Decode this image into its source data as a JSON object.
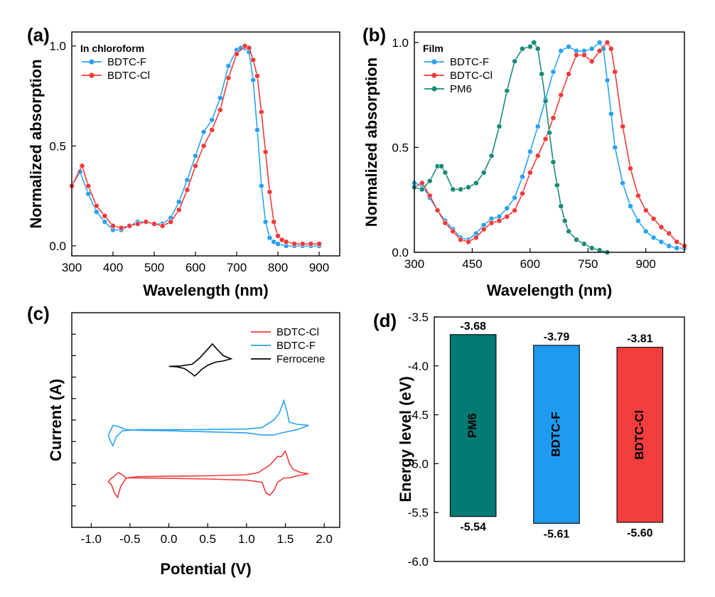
{
  "colors": {
    "blue": "#2aa2ee",
    "red": "#ee3b3b",
    "teal": "#1a8a7a",
    "black": "#000000",
    "pm6_bar": "#047a74",
    "f_bar": "#1e9bf0",
    "cl_bar": "#f43e3e"
  },
  "chart_data": [
    {
      "id": "a",
      "panel_label": "(a)",
      "type": "line",
      "xlabel": "Wavelength (nm)",
      "ylabel": "Normalized absorption",
      "xlim": [
        300,
        950
      ],
      "ylim": [
        -0.05,
        1.07
      ],
      "xticks": [
        300,
        400,
        500,
        600,
        700,
        800,
        900
      ],
      "xtick_labels": [
        "300",
        "400",
        "500",
        "600",
        "700",
        "800",
        "900"
      ],
      "yticks": [
        0.0,
        0.5,
        1.0
      ],
      "ytick_labels": [
        "0.0",
        "0.5",
        "1.0"
      ],
      "legend_title": "In chloroform",
      "legend_position": "top-left",
      "series": [
        {
          "name": "BDTC-F",
          "color": "#2aa2ee",
          "x": [
            300,
            320,
            340,
            360,
            380,
            400,
            420,
            440,
            460,
            480,
            500,
            520,
            540,
            560,
            580,
            600,
            620,
            640,
            660,
            680,
            700,
            710,
            720,
            730,
            740,
            750,
            760,
            770,
            780,
            790,
            800,
            820,
            840,
            860,
            880,
            900
          ],
          "y": [
            0.3,
            0.37,
            0.26,
            0.17,
            0.12,
            0.08,
            0.08,
            0.1,
            0.12,
            0.12,
            0.11,
            0.11,
            0.14,
            0.22,
            0.33,
            0.45,
            0.57,
            0.63,
            0.74,
            0.9,
            0.98,
            0.99,
            0.99,
            0.97,
            0.83,
            0.58,
            0.3,
            0.12,
            0.04,
            0.02,
            0.01,
            0.0,
            0.0,
            0.0,
            0.0,
            0.0
          ]
        },
        {
          "name": "BDTC-Cl",
          "color": "#ee3b3b",
          "x": [
            300,
            325,
            340,
            360,
            380,
            400,
            420,
            440,
            460,
            480,
            500,
            520,
            540,
            560,
            580,
            600,
            620,
            640,
            660,
            680,
            700,
            720,
            730,
            740,
            750,
            760,
            770,
            780,
            790,
            800,
            810,
            820,
            840,
            860,
            880,
            900
          ],
          "y": [
            0.3,
            0.4,
            0.3,
            0.2,
            0.15,
            0.1,
            0.09,
            0.1,
            0.11,
            0.12,
            0.11,
            0.1,
            0.12,
            0.18,
            0.28,
            0.4,
            0.5,
            0.58,
            0.68,
            0.84,
            0.96,
            1.0,
            0.99,
            0.93,
            0.85,
            0.67,
            0.47,
            0.27,
            0.12,
            0.05,
            0.03,
            0.02,
            0.01,
            0.01,
            0.01,
            0.01
          ]
        }
      ]
    },
    {
      "id": "b",
      "panel_label": "(b)",
      "type": "line",
      "xlabel": "Wavelength (nm)",
      "ylabel": "Normalized absorption",
      "xlim": [
        300,
        1000
      ],
      "ylim": [
        0.0,
        1.05
      ],
      "xticks": [
        300,
        450,
        600,
        750,
        900
      ],
      "xtick_labels": [
        "300",
        "450",
        "600",
        "750",
        "900"
      ],
      "yticks": [
        0.0,
        0.5,
        1.0
      ],
      "ytick_labels": [
        "0.0",
        "0.5",
        "1.0"
      ],
      "legend_title": "Film",
      "legend_position": "top-left",
      "series": [
        {
          "name": "BDTC-F",
          "color": "#2aa2ee",
          "x": [
            300,
            320,
            340,
            360,
            380,
            400,
            420,
            440,
            460,
            480,
            500,
            520,
            540,
            560,
            580,
            600,
            620,
            640,
            660,
            680,
            700,
            720,
            740,
            760,
            780,
            790,
            800,
            810,
            820,
            840,
            860,
            880,
            900,
            920,
            940,
            960,
            980,
            1000
          ],
          "y": [
            0.33,
            0.32,
            0.26,
            0.2,
            0.15,
            0.11,
            0.07,
            0.06,
            0.09,
            0.13,
            0.16,
            0.17,
            0.21,
            0.26,
            0.36,
            0.48,
            0.6,
            0.73,
            0.86,
            0.96,
            0.98,
            0.96,
            0.96,
            0.97,
            1.0,
            0.97,
            0.82,
            0.66,
            0.5,
            0.33,
            0.22,
            0.15,
            0.1,
            0.07,
            0.05,
            0.03,
            0.02,
            0.02
          ]
        },
        {
          "name": "BDTC-Cl",
          "color": "#ee3b3b",
          "x": [
            300,
            320,
            340,
            360,
            380,
            400,
            420,
            440,
            460,
            480,
            500,
            520,
            540,
            560,
            580,
            600,
            620,
            640,
            660,
            680,
            700,
            720,
            740,
            760,
            780,
            800,
            810,
            820,
            840,
            860,
            880,
            900,
            920,
            940,
            960,
            980,
            1000
          ],
          "y": [
            0.31,
            0.33,
            0.27,
            0.2,
            0.14,
            0.1,
            0.06,
            0.05,
            0.07,
            0.11,
            0.14,
            0.15,
            0.17,
            0.2,
            0.28,
            0.38,
            0.46,
            0.54,
            0.64,
            0.75,
            0.85,
            0.94,
            0.94,
            0.91,
            0.96,
            1.0,
            0.97,
            0.86,
            0.6,
            0.4,
            0.27,
            0.2,
            0.16,
            0.12,
            0.09,
            0.05,
            0.03
          ]
        },
        {
          "name": "PM6",
          "color": "#1a8a7a",
          "x": [
            300,
            320,
            340,
            360,
            370,
            380,
            400,
            420,
            440,
            460,
            480,
            500,
            520,
            540,
            560,
            580,
            600,
            610,
            620,
            630,
            640,
            650,
            660,
            670,
            680,
            690,
            700,
            720,
            740,
            760,
            780,
            800
          ],
          "y": [
            0.31,
            0.3,
            0.34,
            0.41,
            0.41,
            0.38,
            0.3,
            0.3,
            0.31,
            0.33,
            0.38,
            0.46,
            0.6,
            0.77,
            0.91,
            0.97,
            0.98,
            1.0,
            0.97,
            0.85,
            0.72,
            0.57,
            0.43,
            0.32,
            0.22,
            0.15,
            0.1,
            0.06,
            0.04,
            0.02,
            0.01,
            0.0
          ]
        }
      ]
    },
    {
      "id": "c",
      "panel_label": "(c)",
      "type": "line",
      "xlabel": "Potential (V)",
      "ylabel": "Current (A)",
      "xlim": [
        -1.25,
        2.2
      ],
      "ylim": [
        0,
        10
      ],
      "xticks": [
        -1.0,
        -0.5,
        0.0,
        0.5,
        1.0,
        1.5,
        2.0
      ],
      "xtick_labels": [
        "-1.0",
        "-0.5",
        "0.0",
        "0.5",
        "1.0",
        "1.5",
        "2.0"
      ],
      "yticks": [
        1,
        2,
        3,
        4,
        5,
        6,
        7,
        8,
        9
      ],
      "legend_position": "top-right",
      "legend_order": [
        "BDTC-Cl",
        "BDTC-F",
        "Ferrocene"
      ],
      "series": [
        {
          "name": "BDTC-Cl",
          "color": "#ee3b3b",
          "x": [
            -0.78,
            -0.74,
            -0.7,
            -0.66,
            -0.62,
            -0.55,
            -0.4,
            0.0,
            0.5,
            1.0,
            1.15,
            1.3,
            1.4,
            1.45,
            1.5,
            1.55,
            1.6,
            1.7,
            1.8,
            1.8,
            1.65,
            1.55,
            1.48,
            1.4,
            1.35,
            1.3,
            1.25,
            1.2,
            1.0,
            0.5,
            0.0,
            -0.4,
            -0.55,
            -0.6,
            -0.65,
            -0.7,
            -0.75,
            -0.78
          ],
          "y": [
            2.12,
            2.0,
            1.6,
            1.4,
            1.9,
            2.3,
            2.36,
            2.38,
            2.4,
            2.45,
            2.55,
            2.9,
            3.3,
            3.3,
            3.55,
            3.0,
            2.7,
            2.55,
            2.5,
            2.5,
            2.4,
            2.3,
            2.3,
            2.1,
            1.7,
            1.5,
            1.6,
            2.1,
            2.2,
            2.25,
            2.28,
            2.3,
            2.3,
            2.45,
            2.55,
            2.4,
            2.25,
            2.12
          ]
        },
        {
          "name": "BDTC-F",
          "color": "#2aa2ee",
          "x": [
            -0.78,
            -0.75,
            -0.72,
            -0.68,
            -0.6,
            -0.4,
            0.0,
            0.5,
            1.0,
            1.2,
            1.35,
            1.42,
            1.48,
            1.52,
            1.55,
            1.65,
            1.8,
            1.8,
            1.65,
            1.45,
            1.35,
            1.2,
            1.0,
            0.5,
            0.0,
            -0.4,
            -0.55,
            -0.65,
            -0.72,
            -0.78
          ],
          "y": [
            4.3,
            4.0,
            3.8,
            4.2,
            4.5,
            4.55,
            4.55,
            4.56,
            4.58,
            4.65,
            5.0,
            5.3,
            5.9,
            5.4,
            4.9,
            4.8,
            4.75,
            4.75,
            4.55,
            4.4,
            4.3,
            4.3,
            4.4,
            4.45,
            4.5,
            4.52,
            4.55,
            4.7,
            4.75,
            4.3
          ]
        },
        {
          "name": "Ferrocene",
          "color": "#000000",
          "x": [
            0.0,
            0.15,
            0.3,
            0.4,
            0.5,
            0.56,
            0.62,
            0.7,
            0.8,
            0.7,
            0.6,
            0.5,
            0.42,
            0.38,
            0.33,
            0.3,
            0.2,
            0.1,
            0.0
          ],
          "y": [
            7.5,
            7.52,
            7.6,
            7.9,
            8.3,
            8.55,
            8.3,
            8.0,
            7.85,
            7.75,
            7.7,
            7.55,
            7.35,
            7.2,
            7.05,
            7.15,
            7.4,
            7.48,
            7.5
          ]
        }
      ]
    },
    {
      "id": "d",
      "panel_label": "(d)",
      "type": "bar",
      "ylabel": "Energy level (eV)",
      "ylim": [
        -6.0,
        -3.5
      ],
      "yticks": [
        -6.0,
        -5.5,
        -5.0,
        -4.5,
        -4.0,
        -3.5
      ],
      "ytick_labels": [
        "-6.0",
        "-5.5",
        "-5.0",
        "-4.5",
        "-4.0",
        "-3.5"
      ],
      "categories": [
        "PM6",
        "BDTC-F",
        "BDTC-Cl"
      ],
      "lumo": [
        -3.68,
        -3.79,
        -3.81
      ],
      "homo": [
        -5.54,
        -5.61,
        -5.6
      ],
      "lumo_labels": [
        "-3.68",
        "-3.79",
        "-3.81"
      ],
      "homo_labels": [
        "-5.54",
        "-5.61",
        "-5.60"
      ],
      "bar_colors": [
        "#047a74",
        "#1e9bf0",
        "#f43e3e"
      ]
    }
  ]
}
